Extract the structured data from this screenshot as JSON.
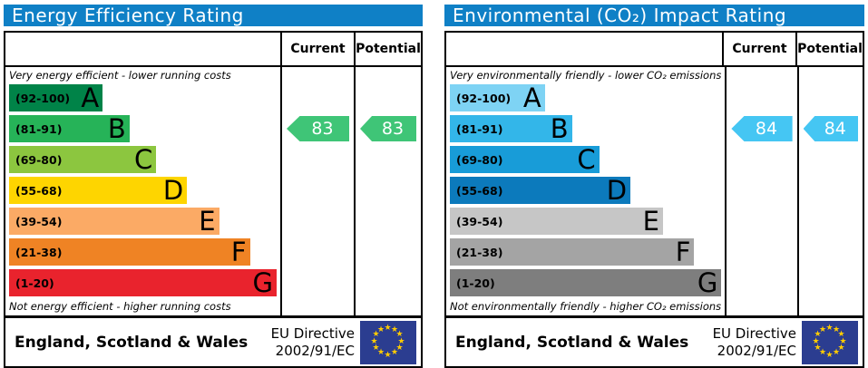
{
  "columns": {
    "current": "Current",
    "potential": "Potential"
  },
  "colors": {
    "header_bar": "#0f80c6",
    "flag_blue": "#2b3d90",
    "flag_star": "#ffcc00"
  },
  "panels": [
    {
      "title": "Energy Efficiency Rating",
      "top_note": "Very energy efficient - lower running costs",
      "bottom_note": "Not energy efficient - higher running costs",
      "bands": [
        {
          "range": "(92-100)",
          "letter": "A",
          "color": "#008348",
          "width_pct": "35%"
        },
        {
          "range": "(81-91)",
          "letter": "B",
          "color": "#26b358",
          "width_pct": "45%"
        },
        {
          "range": "(69-80)",
          "letter": "C",
          "color": "#8cc63f",
          "width_pct": "55%"
        },
        {
          "range": "(55-68)",
          "letter": "D",
          "color": "#fed500",
          "width_pct": "66.5%"
        },
        {
          "range": "(39-54)",
          "letter": "E",
          "color": "#fbaa65",
          "width_pct": "78.5%"
        },
        {
          "range": "(21-38)",
          "letter": "F",
          "color": "#ef8324",
          "width_pct": "90%"
        },
        {
          "range": "(1-20)",
          "letter": "G",
          "color": "#e9232d",
          "width_pct": "100%"
        }
      ],
      "current": {
        "value": "83",
        "color": "#3fc577",
        "band_index": 1
      },
      "potential": {
        "value": "83",
        "color": "#3fc577",
        "band_index": 1
      },
      "footer": {
        "region": "England, Scotland & Wales",
        "directive_line1": "EU Directive",
        "directive_line2": "2002/91/EC"
      }
    },
    {
      "title": "Environmental (CO₂) Impact Rating",
      "top_note": "Very environmentally friendly - lower CO₂ emissions",
      "bottom_note": "Not environmentally friendly - higher CO₂ emissions",
      "bands": [
        {
          "range": "(92-100)",
          "letter": "A",
          "color": "#7ed3f4",
          "width_pct": "35%"
        },
        {
          "range": "(81-91)",
          "letter": "B",
          "color": "#33b6e9",
          "width_pct": "45%"
        },
        {
          "range": "(69-80)",
          "letter": "C",
          "color": "#189cd8",
          "width_pct": "55%"
        },
        {
          "range": "(55-68)",
          "letter": "D",
          "color": "#0c7abc",
          "width_pct": "66.5%"
        },
        {
          "range": "(39-54)",
          "letter": "E",
          "color": "#c6c6c6",
          "width_pct": "78.5%"
        },
        {
          "range": "(21-38)",
          "letter": "F",
          "color": "#a4a4a4",
          "width_pct": "90%"
        },
        {
          "range": "(1-20)",
          "letter": "G",
          "color": "#7e7e7e",
          "width_pct": "100%"
        }
      ],
      "current": {
        "value": "84",
        "color": "#45c6f3",
        "band_index": 1
      },
      "potential": {
        "value": "84",
        "color": "#45c6f3",
        "band_index": 1
      },
      "footer": {
        "region": "England, Scotland & Wales",
        "directive_line1": "EU Directive",
        "directive_line2": "2002/91/EC"
      }
    }
  ],
  "chart_data": [
    {
      "type": "bar",
      "title": "Energy Efficiency Rating",
      "categories": [
        "A (92-100)",
        "B (81-91)",
        "C (69-80)",
        "D (55-68)",
        "E (39-54)",
        "F (21-38)",
        "G (1-20)"
      ],
      "band_colors": [
        "#008348",
        "#26b358",
        "#8cc63f",
        "#fed500",
        "#fbaa65",
        "#ef8324",
        "#e9232d"
      ],
      "series": [
        {
          "name": "Current",
          "values": [
            83
          ],
          "band": "B"
        },
        {
          "name": "Potential",
          "values": [
            83
          ],
          "band": "B"
        }
      ],
      "scale_range": [
        1,
        100
      ],
      "top_annotation": "Very energy efficient - lower running costs",
      "bottom_annotation": "Not energy efficient - higher running costs",
      "footer": "England, Scotland & Wales — EU Directive 2002/91/EC"
    },
    {
      "type": "bar",
      "title": "Environmental (CO₂) Impact Rating",
      "categories": [
        "A (92-100)",
        "B (81-91)",
        "C (69-80)",
        "D (55-68)",
        "E (39-54)",
        "F (21-38)",
        "G (1-20)"
      ],
      "band_colors": [
        "#7ed3f4",
        "#33b6e9",
        "#189cd8",
        "#0c7abc",
        "#c6c6c6",
        "#a4a4a4",
        "#7e7e7e"
      ],
      "series": [
        {
          "name": "Current",
          "values": [
            84
          ],
          "band": "B"
        },
        {
          "name": "Potential",
          "values": [
            84
          ],
          "band": "B"
        }
      ],
      "scale_range": [
        1,
        100
      ],
      "top_annotation": "Very environmentally friendly - lower CO₂ emissions",
      "bottom_annotation": "Not environmentally friendly - higher CO₂ emissions",
      "footer": "England, Scotland & Wales — EU Directive 2002/91/EC"
    }
  ]
}
